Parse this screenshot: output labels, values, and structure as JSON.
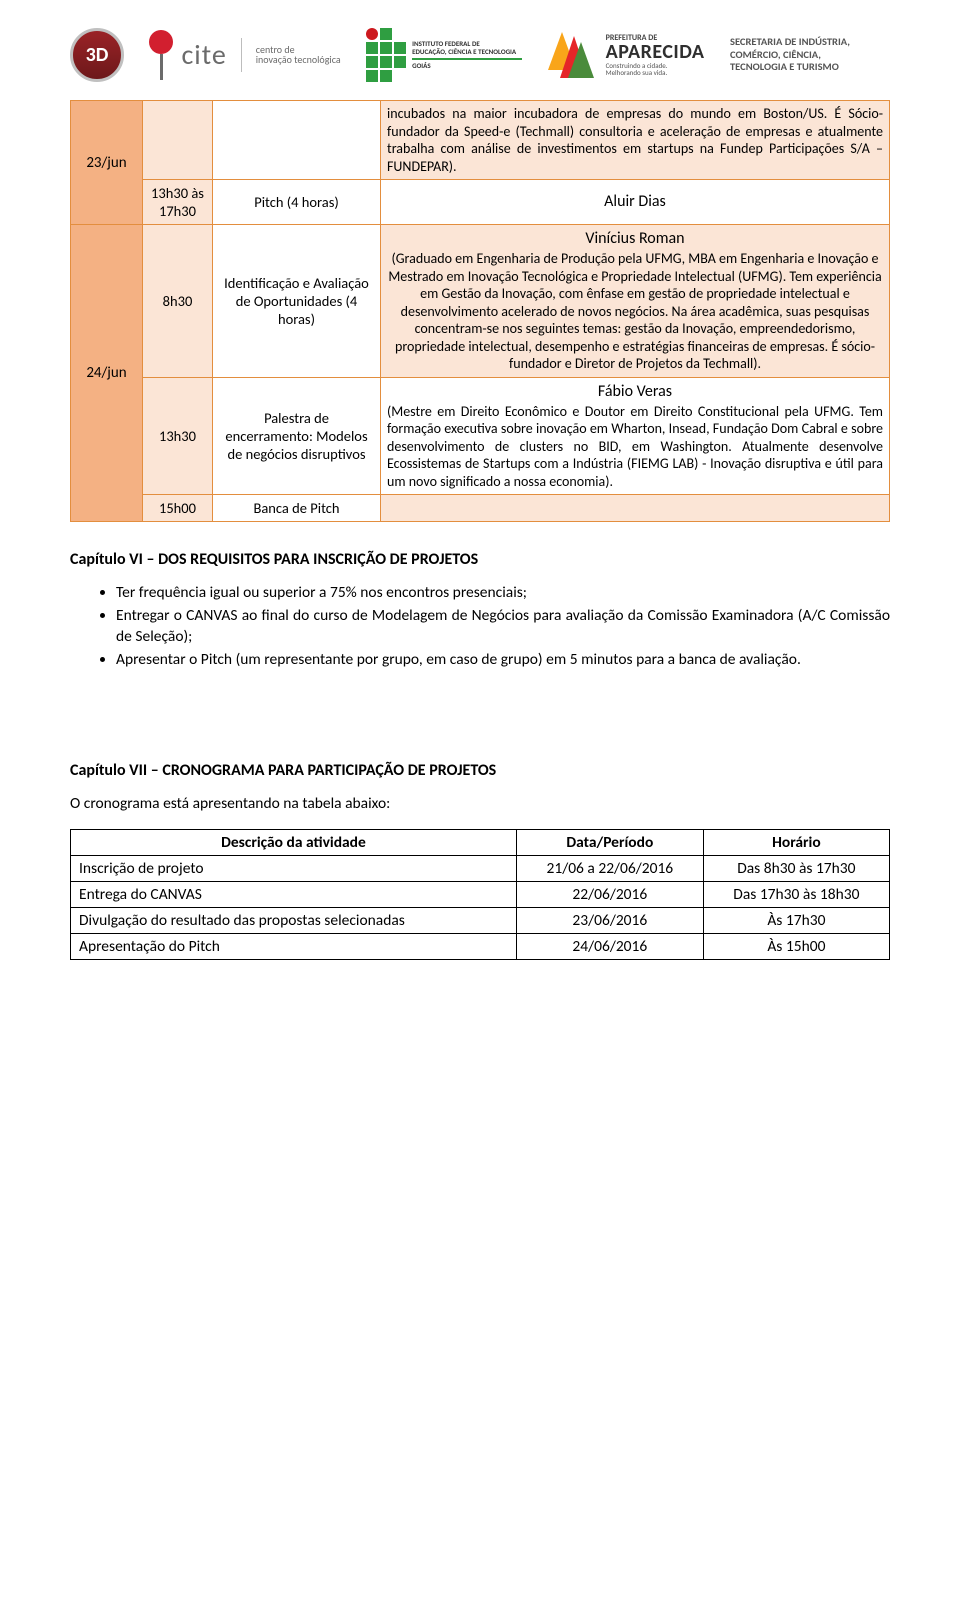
{
  "header": {
    "logo3d": "3D",
    "cite_brand": "cite",
    "cite_sub1": "centro de",
    "cite_sub2": "inovação tecnológica",
    "if_line1": "INSTITUTO FEDERAL DE",
    "if_line2": "EDUCAÇÃO, CIÊNCIA E TECNOLOGIA",
    "if_line3": "GOIÁS",
    "ap_pref": "PREFEITURA DE",
    "ap_name": "APARECIDA",
    "ap_slogan1": "Construindo a cidade.",
    "ap_slogan2": "Melhorando sua vida.",
    "sec_line1": "SECRETARIA DE INDÚSTRIA,",
    "sec_line2": "COMÉRCIO, CIÊNCIA,",
    "sec_line3": "TECNOLOGIA E TURISMO"
  },
  "schedule": {
    "row1": {
      "desc": "incubados na maior incubadora de empresas do mundo em Boston/US. É Sócio-fundador da Speed-e (Techmall) consultoria e aceleração de empresas e atualmente trabalha com análise de investimentos em startups na Fundep Participações S/A – FUNDEPAR)."
    },
    "row2": {
      "date": "23/jun",
      "time": "13h30 às 17h30",
      "topic": "Pitch (4 horas)",
      "desc_title": "Aluir Dias"
    },
    "row3": {
      "date": "24/jun",
      "time": "8h30",
      "topic": "Identificação e Avaliação de Oportunidades (4 horas)",
      "desc_title": "Vinícius Roman",
      "desc": "(Graduado em Engenharia de Produção pela UFMG, MBA em Engenharia e Inovação e Mestrado em Inovação Tecnológica e Propriedade Intelectual (UFMG). Tem experiência em Gestão da Inovação, com ênfase em gestão de propriedade intelectual e desenvolvimento acelerado de novos negócios. Na área acadêmica, suas pesquisas concentram-se nos seguintes temas: gestão da Inovação, empreendedorismo, propriedade intelectual, desempenho e estratégias financeiras de empresas. É sócio-fundador e Diretor de Projetos da Techmall)."
    },
    "row4": {
      "time": "13h30",
      "topic": "Palestra de encerramento: Modelos de negócios disruptivos",
      "desc_title": "Fábio Veras",
      "desc": "(Mestre em Direito Econômico e Doutor em Direito Constitucional pela UFMG. Tem formação executiva sobre inovação em Wharton, Insead, Fundação Dom Cabral e sobre desenvolvimento de clusters no BID, em Washington. Atualmente desenvolve Ecossistemas de Startups com a Indústria (FIEMG LAB) - Inovação disruptiva e útil para um novo significado a nossa economia)."
    },
    "row5": {
      "time": "15h00",
      "topic": "Banca de Pitch"
    }
  },
  "cap6": {
    "title": "Capítulo VI – DOS REQUISITOS PARA INSCRIÇÃO DE PROJETOS",
    "b1": "Ter frequência igual ou superior a 75% nos encontros presenciais;",
    "b2": "Entregar o CANVAS ao final do curso de Modelagem de Negócios para avaliação da Comissão Examinadora (A/C Comissão de Seleção);",
    "b3": "Apresentar o Pitch (um representante por grupo, em caso de grupo) em 5 minutos para a banca de avaliação."
  },
  "cap7": {
    "title": "Capítulo VII – CRONOGRAMA PARA PARTICIPAÇÃO DE PROJETOS",
    "intro": "O cronograma está apresentando na tabela abaixo:",
    "headers": {
      "c1": "Descrição da atividade",
      "c2": "Data/Período",
      "c3": "Horário"
    },
    "rows": [
      {
        "c1": "Inscrição de projeto",
        "c2": "21/06 a 22/06/2016",
        "c3": "Das 8h30 às 17h30"
      },
      {
        "c1": "Entrega do CANVAS",
        "c2": "22/06/2016",
        "c3": "Das 17h30 às 18h30"
      },
      {
        "c1": "Divulgação do resultado das propostas selecionadas",
        "c2": "23/06/2016",
        "c3": "Às 17h30"
      },
      {
        "c1": "Apresentação do Pitch",
        "c2": "24/06/2016",
        "c3": "Às 15h00"
      }
    ]
  }
}
